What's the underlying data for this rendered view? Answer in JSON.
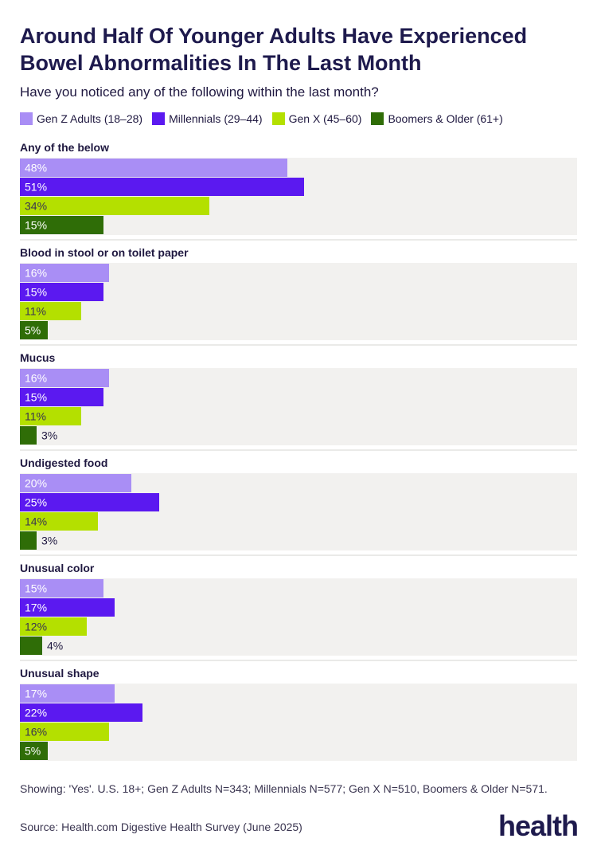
{
  "title": "Around Half Of Younger Adults Have Experienced Bowel Abnormalities In The Last Month",
  "subtitle": "Have you noticed any of the following within the last month?",
  "footnote": "Showing: 'Yes'. U.S. 18+; Gen Z Adults N=343; Millennials N=577; Gen X N=510, Boomers & Older N=571.",
  "source": "Source: Health.com Digestive Health Survey (June 2025)",
  "logo": "health",
  "colors": {
    "gen_z": "#a98ef5",
    "millennials": "#5b19f0",
    "gen_x": "#b4e000",
    "boomers": "#2f6d07",
    "panel_bg": "#f2f1ef",
    "divider": "#d6d4d0"
  },
  "chart_data": {
    "type": "bar",
    "orientation": "horizontal",
    "unit": "%",
    "xlim": [
      0,
      100
    ],
    "grid": false,
    "legend_position": "top",
    "categories": [
      "Any of the below",
      "Blood in stool or on toilet paper",
      "Mucus",
      "Undigested food",
      "Unusual color",
      "Unusual shape"
    ],
    "series": [
      {
        "name": "Gen Z Adults (18–28)",
        "color_key": "gen_z",
        "values": [
          48,
          16,
          16,
          20,
          15,
          17
        ]
      },
      {
        "name": "Millennials (29–44)",
        "color_key": "millennials",
        "values": [
          51,
          15,
          15,
          25,
          17,
          22
        ]
      },
      {
        "name": "Gen X (45–60)",
        "color_key": "gen_x",
        "values": [
          34,
          11,
          11,
          14,
          12,
          16
        ]
      },
      {
        "name": "Boomers & Older (61+)",
        "color_key": "boomers",
        "values": [
          15,
          5,
          3,
          3,
          4,
          5
        ]
      }
    ]
  }
}
